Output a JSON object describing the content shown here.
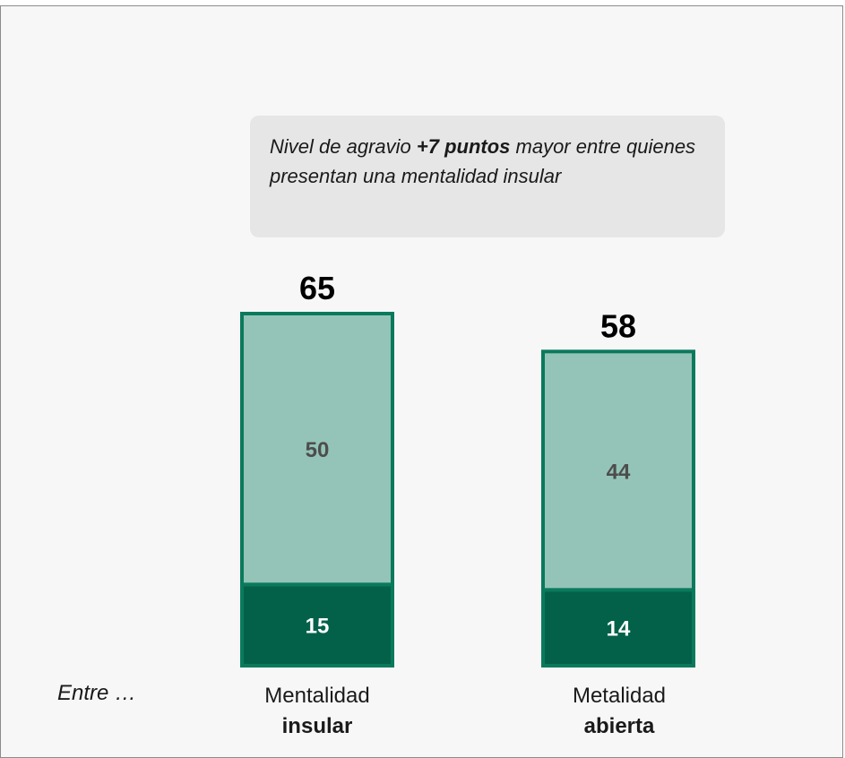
{
  "callout": {
    "prefix": "Nivel de agravio ",
    "highlight": "+7 puntos",
    "suffix": " mayor entre quienes presentan una mentalidad insular"
  },
  "row_label": "Entre …",
  "chart_data": {
    "type": "bar",
    "stacked": true,
    "categories": [
      "Mentalidad insular",
      "Metalidad abierta"
    ],
    "category_lines": [
      [
        "Mentalidad",
        "insular"
      ],
      [
        "Metalidad",
        "abierta"
      ]
    ],
    "totals": [
      65,
      58
    ],
    "series": [
      {
        "values": [
          15,
          14
        ],
        "color": "#03614a"
      },
      {
        "values": [
          50,
          44
        ],
        "color": "#94c4b7"
      }
    ],
    "border_color": "#0a7a5c",
    "ylim": [
      0,
      65
    ],
    "grid": false
  }
}
